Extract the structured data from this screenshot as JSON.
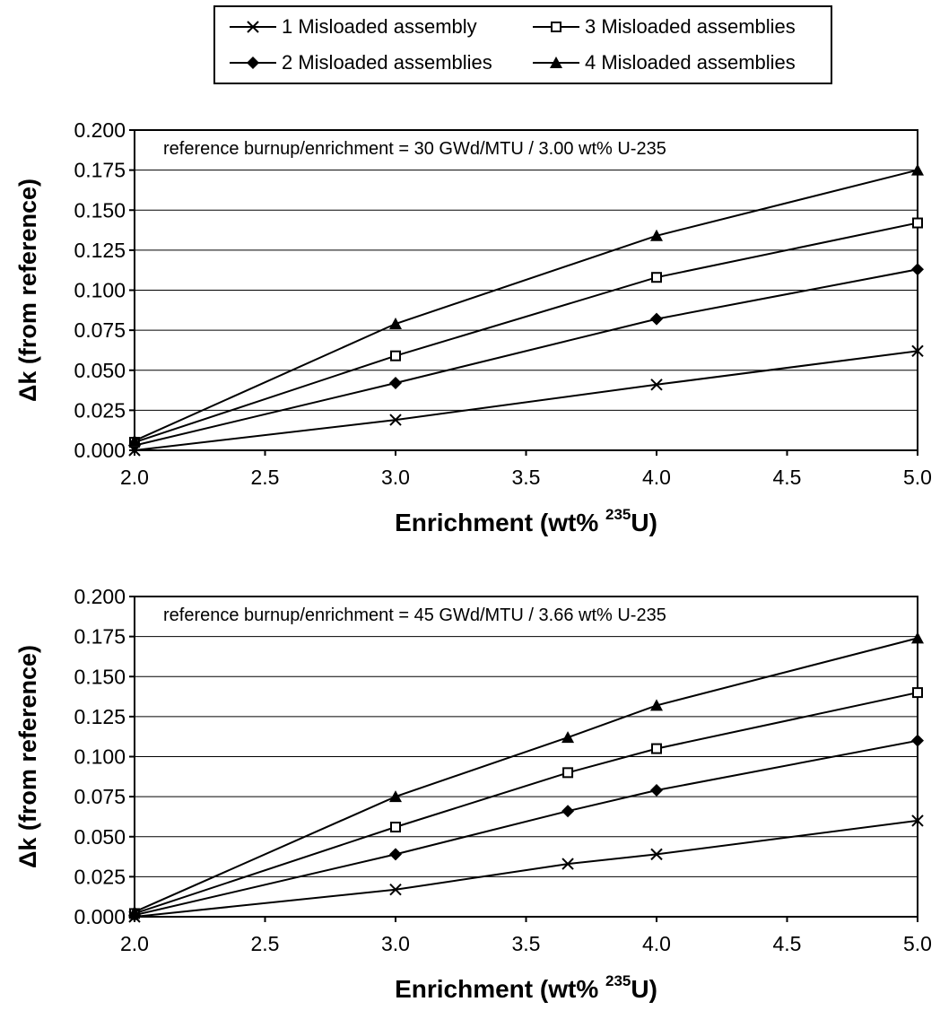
{
  "legend": {
    "position": "top",
    "items": [
      {
        "name": "1 Misloaded assembly",
        "marker": "x"
      },
      {
        "name": "3 Misloaded assemblies",
        "marker": "open-square"
      },
      {
        "name": "2 Misloaded assemblies",
        "marker": "diamond"
      },
      {
        "name": "4 Misloaded assemblies",
        "marker": "triangle"
      }
    ]
  },
  "chart_data": [
    {
      "type": "line",
      "annotation": "reference burnup/enrichment = 30 GWd/MTU / 3.00 wt% U-235",
      "xlabel": "Enrichment (wt% ²³⁵U)",
      "xlabel_main": "Enrichment (wt% ",
      "xlabel_sup": "235",
      "xlabel_end": "U)",
      "ylabel": "Δk (from reference)",
      "xlim": [
        2.0,
        5.0
      ],
      "ylim": [
        0.0,
        0.2
      ],
      "xticks": [
        "2.0",
        "2.5",
        "3.0",
        "3.5",
        "4.0",
        "4.5",
        "5.0"
      ],
      "yticks": [
        "0.000",
        "0.025",
        "0.050",
        "0.075",
        "0.100",
        "0.125",
        "0.150",
        "0.175",
        "0.200"
      ],
      "grid": true,
      "series": [
        {
          "name": "1 Misloaded assembly",
          "marker": "x",
          "x": [
            2.0,
            3.0,
            4.0,
            5.0
          ],
          "y": [
            0.0,
            0.019,
            0.041,
            0.062
          ]
        },
        {
          "name": "2 Misloaded assemblies",
          "marker": "diamond",
          "x": [
            2.0,
            3.0,
            4.0,
            5.0
          ],
          "y": [
            0.003,
            0.042,
            0.082,
            0.113
          ]
        },
        {
          "name": "3 Misloaded assemblies",
          "marker": "open-square",
          "x": [
            2.0,
            3.0,
            4.0,
            5.0
          ],
          "y": [
            0.005,
            0.059,
            0.108,
            0.142
          ]
        },
        {
          "name": "4 Misloaded assemblies",
          "marker": "triangle",
          "x": [
            2.0,
            3.0,
            4.0,
            5.0
          ],
          "y": [
            0.006,
            0.079,
            0.134,
            0.175
          ]
        }
      ]
    },
    {
      "type": "line",
      "annotation": "reference burnup/enrichment = 45 GWd/MTU / 3.66 wt% U-235",
      "xlabel": "Enrichment (wt% ²³⁵U)",
      "xlabel_main": "Enrichment (wt% ",
      "xlabel_sup": "235",
      "xlabel_end": "U)",
      "ylabel": "Δk (from reference)",
      "xlim": [
        2.0,
        5.0
      ],
      "ylim": [
        0.0,
        0.2
      ],
      "xticks": [
        "2.0",
        "2.5",
        "3.0",
        "3.5",
        "4.0",
        "4.5",
        "5.0"
      ],
      "yticks": [
        "0.000",
        "0.025",
        "0.050",
        "0.075",
        "0.100",
        "0.125",
        "0.150",
        "0.175",
        "0.200"
      ],
      "grid": true,
      "series": [
        {
          "name": "1 Misloaded assembly",
          "marker": "x",
          "x": [
            2.0,
            3.0,
            3.66,
            4.0,
            5.0
          ],
          "y": [
            0.0,
            0.017,
            0.033,
            0.039,
            0.06
          ]
        },
        {
          "name": "2 Misloaded assemblies",
          "marker": "diamond",
          "x": [
            2.0,
            3.0,
            3.66,
            4.0,
            5.0
          ],
          "y": [
            0.001,
            0.039,
            0.066,
            0.079,
            0.11
          ]
        },
        {
          "name": "3 Misloaded assemblies",
          "marker": "open-square",
          "x": [
            2.0,
            3.0,
            3.66,
            4.0,
            5.0
          ],
          "y": [
            0.002,
            0.056,
            0.09,
            0.105,
            0.14
          ]
        },
        {
          "name": "4 Misloaded assemblies",
          "marker": "triangle",
          "x": [
            2.0,
            3.0,
            3.66,
            4.0,
            5.0
          ],
          "y": [
            0.003,
            0.075,
            0.112,
            0.132,
            0.174
          ]
        }
      ]
    }
  ]
}
